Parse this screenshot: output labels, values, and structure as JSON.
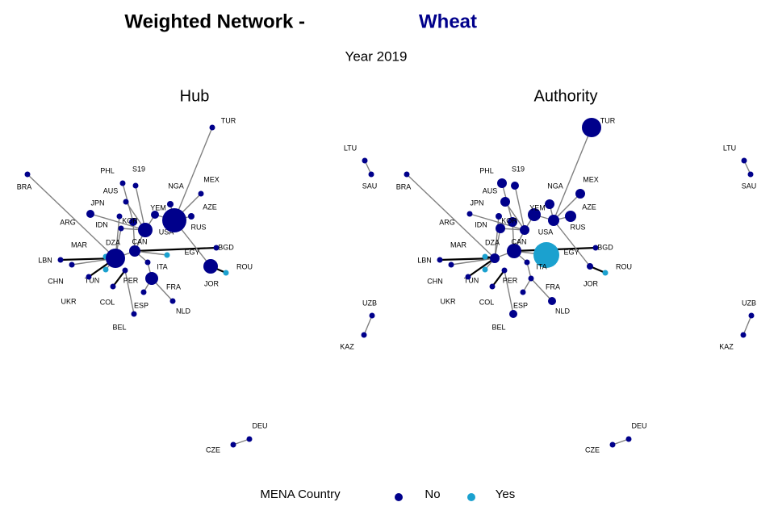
{
  "header": {
    "title": "Weighted Network -",
    "highlight": "Wheat",
    "highlight_color": "#00008b",
    "subtitle": "Year 2019"
  },
  "panels": [
    {
      "title": "Hub"
    },
    {
      "title": "Authority"
    }
  ],
  "nodes": [
    {
      "label": "TUR",
      "mena": false
    },
    {
      "label": "BRA",
      "mena": false
    },
    {
      "label": "PHL",
      "mena": false
    },
    {
      "label": "S19",
      "mena": false
    },
    {
      "label": "LTU",
      "mena": false
    },
    {
      "label": "SAU",
      "mena": false
    },
    {
      "label": "MEX",
      "mena": false
    },
    {
      "label": "NGA",
      "mena": false
    },
    {
      "label": "AUS",
      "mena": false
    },
    {
      "label": "JPN",
      "mena": false
    },
    {
      "label": "AZE",
      "mena": false
    },
    {
      "label": "YEM",
      "mena": false
    },
    {
      "label": "ARG",
      "mena": false
    },
    {
      "label": "IDN",
      "mena": false
    },
    {
      "label": "KOR",
      "mena": false
    },
    {
      "label": "USA",
      "mena": false
    },
    {
      "label": "RUS",
      "mena": false
    },
    {
      "label": "MAR",
      "mena": true
    },
    {
      "label": "DZA",
      "mena": false
    },
    {
      "label": "CAN",
      "mena": false
    },
    {
      "label": "BGD",
      "mena": false
    },
    {
      "label": "EGY",
      "mena": true
    },
    {
      "label": "LBN",
      "mena": false
    },
    {
      "label": "CHN",
      "mena": false
    },
    {
      "label": "ITA",
      "mena": false
    },
    {
      "label": "ROU",
      "mena": true
    },
    {
      "label": "JOR",
      "mena": false
    },
    {
      "label": "TUN",
      "mena": true
    },
    {
      "label": "PER",
      "mena": false
    },
    {
      "label": "FRA",
      "mena": false
    },
    {
      "label": "UKR",
      "mena": false
    },
    {
      "label": "COL",
      "mena": false
    },
    {
      "label": "ESP",
      "mena": false
    },
    {
      "label": "NLD",
      "mena": false
    },
    {
      "label": "BEL",
      "mena": false
    },
    {
      "label": "UZB",
      "mena": false
    },
    {
      "label": "KAZ",
      "mena": false
    },
    {
      "label": "DEU",
      "mena": false
    },
    {
      "label": "CZE",
      "mena": false
    }
  ],
  "legend": {
    "title": "MENA Country",
    "items": [
      {
        "label": "No",
        "color": "#00008b"
      },
      {
        "label": "Yes",
        "color": "#1ba1cf"
      }
    ]
  }
}
